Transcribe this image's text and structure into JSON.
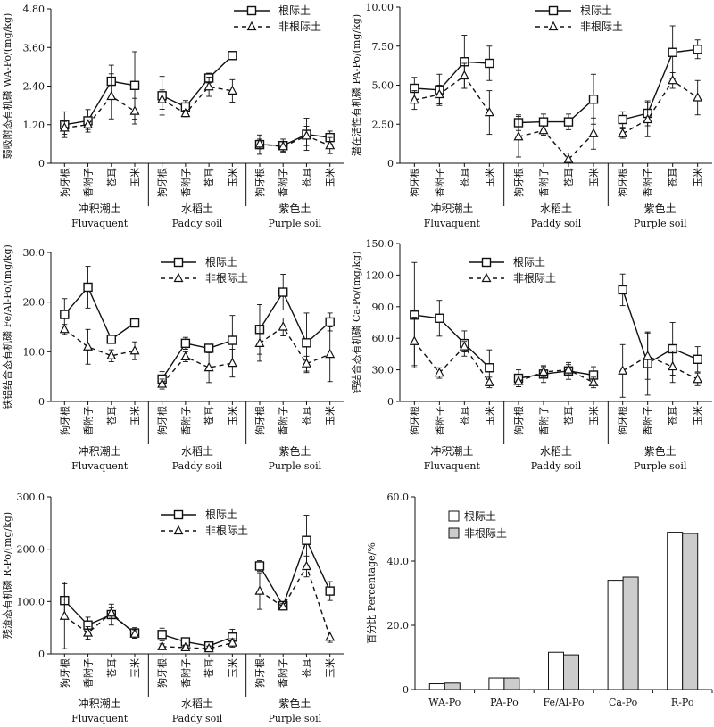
{
  "legend": {
    "rhizo": "根际土",
    "nonrhizo": "非根际土"
  },
  "groups": [
    {
      "cn": "冲积潮土",
      "en": "Fluvaquent"
    },
    {
      "cn": "水稻土",
      "en": "Paddy soil"
    },
    {
      "cn": "紫色土",
      "en": "Purple soil"
    }
  ],
  "crops": [
    "狗牙根",
    "香附子",
    "苍耳",
    "玉米"
  ],
  "chart_data": [
    {
      "type": "line",
      "ylabel": "弱吸附态有机磷 WA-Po/(mg/kg)",
      "ylim": [
        0,
        4.8
      ],
      "yticks": [
        "0",
        "1.20",
        "2.40",
        "3.60",
        "4.80"
      ],
      "series": [
        {
          "name": "根际土",
          "values": [
            1.2,
            1.32,
            2.55,
            2.42,
            2.1,
            1.75,
            2.65,
            3.35,
            0.58,
            0.55,
            0.9,
            0.8
          ]
        },
        {
          "name": "非根际土",
          "values": [
            1.1,
            1.2,
            2.08,
            1.62,
            1.98,
            1.55,
            2.38,
            2.25,
            0.6,
            0.52,
            0.85,
            0.55
          ]
        }
      ],
      "errors_rhizo": [
        0.4,
        0.35,
        0.5,
        1.05,
        0.6,
        0.2,
        0.15,
        0.0,
        0.3,
        0.2,
        0.5,
        0.2
      ],
      "errors_nonrhizo": [
        0.2,
        0.15,
        0.7,
        0.4,
        0.3,
        0.1,
        0.3,
        0.35,
        0.15,
        0.15,
        0.3,
        0.25
      ]
    },
    {
      "type": "line",
      "ylabel": "潜在活性有机磷 PA-Po/(mg/kg)",
      "ylim": [
        0,
        10
      ],
      "yticks": [
        "0",
        "2.50",
        "5.00",
        "7.50",
        "10.00"
      ],
      "series": [
        {
          "name": "根际土",
          "values": [
            4.8,
            4.7,
            6.5,
            6.4,
            2.6,
            2.65,
            2.65,
            4.1,
            2.8,
            3.2,
            7.1,
            7.3
          ]
        },
        {
          "name": "非根际土",
          "values": [
            4.05,
            4.4,
            5.6,
            3.25,
            1.7,
            2.1,
            0.25,
            1.9,
            1.9,
            2.8,
            5.3,
            4.2
          ]
        }
      ],
      "errors_rhizo": [
        0.7,
        1.0,
        1.7,
        1.1,
        0.5,
        0.5,
        0.5,
        1.6,
        0.5,
        0.8,
        1.7,
        0.6
      ],
      "errors_nonrhizo": [
        0.6,
        0.6,
        0.8,
        1.4,
        1.3,
        0.3,
        0.4,
        1.0,
        0.3,
        1.1,
        0.5,
        1.1
      ]
    },
    {
      "type": "line",
      "ylabel": "铁铝结合态有机磷 Fe/Al-Po/(mg/kg)",
      "ylim": [
        0,
        30
      ],
      "yticks": [
        "0",
        "10.0",
        "20.0",
        "30.0"
      ],
      "series": [
        {
          "name": "根际土",
          "values": [
            17.5,
            23.0,
            12.5,
            15.8,
            4.5,
            11.7,
            10.7,
            12.3,
            14.5,
            22.0,
            11.8,
            16.0
          ]
        },
        {
          "name": "非根际土",
          "values": [
            14.5,
            11.0,
            9.2,
            10.2,
            3.5,
            9.0,
            6.8,
            7.7,
            11.7,
            15.0,
            7.6,
            9.5
          ]
        }
      ],
      "errors_rhizo": [
        3.2,
        4.2,
        0.5,
        0.8,
        1.5,
        1.2,
        0.5,
        5.0,
        5.0,
        3.6,
        6.0,
        1.8
      ],
      "errors_nonrhizo": [
        1.0,
        3.5,
        1.2,
        1.8,
        1.0,
        1.0,
        3.0,
        2.8,
        3.6,
        1.8,
        1.5,
        5.5
      ]
    },
    {
      "type": "line",
      "ylabel": "钙结合态有机磷 Ca-Po/(mg/kg)",
      "ylim": [
        0,
        150
      ],
      "yticks": [
        "0",
        "30.0",
        "60.0",
        "90.0",
        "120.0",
        "150.0"
      ],
      "series": [
        {
          "name": "根际土",
          "values": [
            82,
            79,
            55,
            32,
            22,
            26,
            29,
            25,
            106,
            36,
            50,
            40
          ]
        },
        {
          "name": "非根际土",
          "values": [
            57,
            27,
            52,
            18,
            19,
            28,
            30,
            18,
            29,
            43,
            33,
            21
          ]
        }
      ],
      "errors_rhizo": [
        50,
        17,
        12,
        17,
        8,
        8,
        8,
        8,
        15,
        30,
        25,
        12
      ],
      "errors_nonrhizo": [
        23,
        5,
        5,
        5,
        5,
        5,
        5,
        5,
        25,
        22,
        15,
        6
      ]
    },
    {
      "type": "line",
      "ylabel": "残渣态有机磷 R-Po/(mg/kg)",
      "ylim": [
        0,
        300
      ],
      "yticks": [
        "0",
        "100.0",
        "200.0",
        "300.0"
      ],
      "series": [
        {
          "name": "根际土",
          "values": [
            102,
            55,
            75,
            40,
            37,
            23,
            15,
            32,
            168,
            92,
            217,
            120
          ]
        },
        {
          "name": "非根际土",
          "values": [
            72,
            40,
            78,
            38,
            14,
            12,
            10,
            21,
            120,
            90,
            167,
            32
          ]
        }
      ],
      "errors_rhizo": [
        35,
        15,
        20,
        10,
        12,
        5,
        5,
        15,
        10,
        8,
        48,
        18
      ],
      "errors_nonrhizo": [
        62,
        12,
        10,
        8,
        5,
        5,
        5,
        8,
        35,
        6,
        20,
        10
      ]
    },
    {
      "type": "bar",
      "ylabel": "百分比 Percentage/%",
      "ylim": [
        0,
        60
      ],
      "yticks": [
        "0",
        "20.0",
        "40.0",
        "60.0"
      ],
      "categories": [
        "WA-Po",
        "PA-Po",
        "Fe/Al-Po",
        "Ca-Po",
        "R-Po"
      ],
      "series": [
        {
          "name": "根际土",
          "values": [
            1.8,
            3.6,
            11.6,
            34.0,
            49.0
          ]
        },
        {
          "name": "非根际土",
          "values": [
            2.0,
            3.6,
            10.8,
            35.0,
            48.6
          ]
        }
      ],
      "colors": [
        "#ffffff",
        "#cccccc"
      ]
    }
  ]
}
